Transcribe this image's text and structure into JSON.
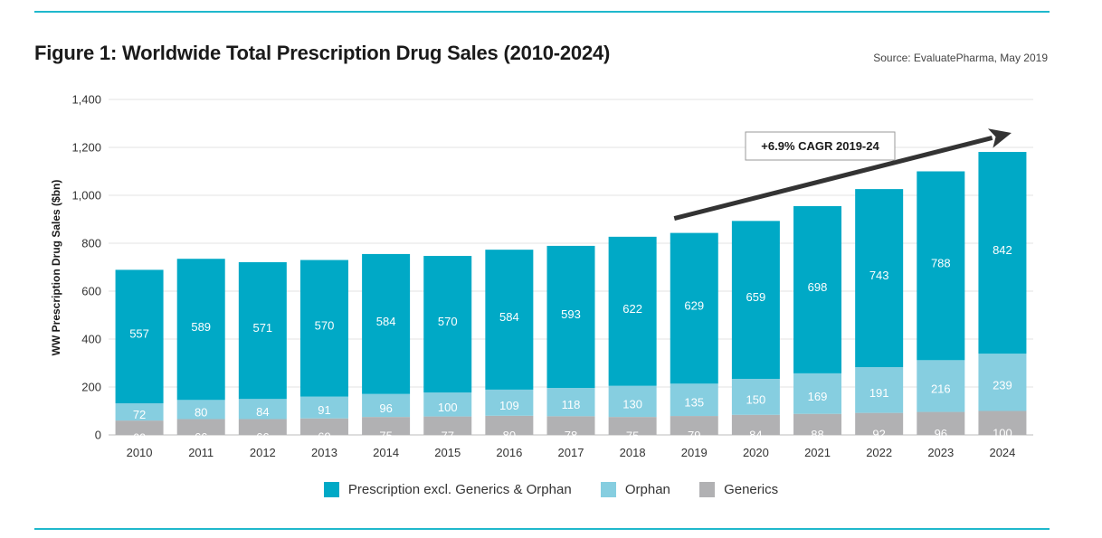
{
  "title": "Figure 1: Worldwide Total Prescription Drug Sales (2010-2024)",
  "source": "Source: EvaluatePharma, May 2019",
  "colors": {
    "rule": "#1fb8cc",
    "rx": "#00a9c6",
    "orphan": "#86cee0",
    "generics": "#b1b1b3",
    "arrow": "#333333"
  },
  "chart_data": {
    "type": "bar",
    "stacked": true,
    "categories": [
      "2010",
      "2011",
      "2012",
      "2013",
      "2014",
      "2015",
      "2016",
      "2017",
      "2018",
      "2019",
      "2020",
      "2021",
      "2022",
      "2023",
      "2024"
    ],
    "series": [
      {
        "name": "Generics",
        "values": [
          60,
          66,
          66,
          69,
          75,
          77,
          80,
          78,
          75,
          79,
          84,
          88,
          92,
          96,
          100
        ]
      },
      {
        "name": "Orphan",
        "values": [
          72,
          80,
          84,
          91,
          96,
          100,
          109,
          118,
          130,
          135,
          150,
          169,
          191,
          216,
          239
        ]
      },
      {
        "name": "Prescription excl. Generics & Orphan",
        "values": [
          557,
          589,
          571,
          570,
          584,
          570,
          584,
          593,
          622,
          629,
          659,
          698,
          743,
          788,
          842
        ]
      }
    ],
    "ylabel": "WW Prescription Drug Sales ($bn)",
    "xlabel": "",
    "ylim": [
      0,
      1400
    ],
    "yticks": [
      0,
      200,
      400,
      600,
      800,
      1000,
      1200,
      1400
    ],
    "ytick_labels": [
      "0",
      "200",
      "400",
      "600",
      "800",
      "1,000",
      "1,200",
      "1,400"
    ],
    "grid": true,
    "legend_position": "bottom",
    "legend": [
      "Prescription excl. Generics & Orphan",
      "Orphan",
      "Generics"
    ],
    "annotation": {
      "text": "+6.9% CAGR 2019-24",
      "from_category": "2019",
      "to_category": "2024"
    }
  }
}
